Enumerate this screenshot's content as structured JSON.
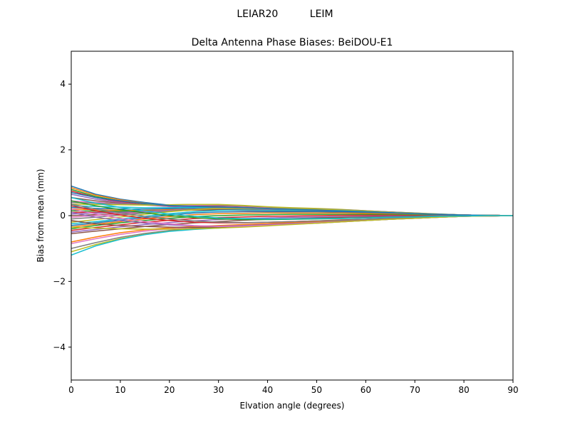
{
  "suptitle": "LEIAR20          LEIM",
  "chart_data": {
    "type": "line",
    "title": "Delta Antenna Phase Biases: BeiDOU-E1",
    "xlabel": "Elvation angle (degrees)",
    "ylabel": "Bias from mean (mm)",
    "xlim": [
      0,
      90
    ],
    "ylim": [
      -5,
      5
    ],
    "xticks": [
      0,
      10,
      20,
      30,
      40,
      50,
      60,
      70,
      80,
      90
    ],
    "yticks": [
      -4,
      -2,
      0,
      2,
      4
    ],
    "xtick_labels": [
      "0",
      "10",
      "20",
      "30",
      "40",
      "50",
      "60",
      "70",
      "80",
      "90"
    ],
    "ytick_labels": [
      "−4",
      "−2",
      "0",
      "2",
      "4"
    ],
    "grid": false,
    "legend": "none",
    "x": [
      0,
      5,
      10,
      15,
      20,
      25,
      30,
      35,
      40,
      45,
      50,
      55,
      60,
      65,
      70,
      75,
      80,
      85,
      90
    ],
    "palette": [
      "#1f77b4",
      "#ff7f0e",
      "#2ca02c",
      "#d62728",
      "#9467bd",
      "#8c564b",
      "#e377c2",
      "#7f7f7f",
      "#bcbd22",
      "#17becf"
    ],
    "series": [
      {
        "values": [
          0.9,
          0.65,
          0.5,
          0.4,
          0.32,
          0.27,
          0.24,
          0.21,
          0.18,
          0.16,
          0.14,
          0.12,
          0.1,
          0.08,
          0.06,
          0.04,
          0.02,
          0.01,
          0.0
        ]
      },
      {
        "values": [
          0.85,
          0.62,
          0.48,
          0.38,
          0.3,
          0.26,
          0.23,
          0.2,
          0.17,
          0.15,
          0.13,
          0.11,
          0.09,
          0.07,
          0.05,
          0.03,
          0.02,
          0.01,
          0.0
        ]
      },
      {
        "values": [
          0.8,
          0.58,
          0.45,
          0.36,
          0.3,
          0.27,
          0.25,
          0.22,
          0.19,
          0.17,
          0.15,
          0.13,
          0.11,
          0.08,
          0.06,
          0.04,
          0.02,
          0.01,
          0.0
        ]
      },
      {
        "values": [
          0.75,
          0.55,
          0.42,
          0.33,
          0.28,
          0.26,
          0.25,
          0.23,
          0.2,
          0.18,
          0.16,
          0.14,
          0.11,
          0.09,
          0.06,
          0.04,
          0.02,
          0.01,
          0.0
        ]
      },
      {
        "values": [
          0.65,
          0.5,
          0.4,
          0.32,
          0.28,
          0.27,
          0.27,
          0.25,
          0.22,
          0.2,
          0.18,
          0.15,
          0.12,
          0.09,
          0.07,
          0.04,
          0.02,
          0.01,
          0.0
        ]
      },
      {
        "values": [
          0.55,
          0.45,
          0.38,
          0.33,
          0.3,
          0.3,
          0.3,
          0.28,
          0.24,
          0.21,
          0.19,
          0.16,
          0.13,
          0.1,
          0.07,
          0.04,
          0.02,
          0.01,
          0.0
        ]
      },
      {
        "values": [
          0.45,
          0.4,
          0.36,
          0.33,
          0.32,
          0.32,
          0.32,
          0.29,
          0.25,
          0.22,
          0.2,
          0.17,
          0.14,
          0.1,
          0.07,
          0.04,
          0.02,
          0.01,
          0.0
        ]
      },
      {
        "values": [
          0.4,
          0.38,
          0.35,
          0.33,
          0.33,
          0.34,
          0.33,
          0.3,
          0.26,
          0.23,
          0.21,
          0.18,
          0.14,
          0.11,
          0.07,
          0.05,
          0.02,
          0.01,
          0.0
        ]
      },
      {
        "values": [
          0.35,
          0.34,
          0.33,
          0.32,
          0.33,
          0.34,
          0.34,
          0.31,
          0.27,
          0.24,
          0.22,
          0.19,
          0.15,
          0.11,
          0.08,
          0.05,
          0.02,
          0.01,
          0.0
        ]
      },
      {
        "values": [
          0.3,
          0.28,
          0.26,
          0.24,
          0.24,
          0.25,
          0.25,
          0.23,
          0.21,
          0.19,
          0.18,
          0.16,
          0.13,
          0.1,
          0.07,
          0.04,
          0.02,
          0.01,
          0.0
        ]
      },
      {
        "values": [
          0.25,
          0.22,
          0.2,
          0.2,
          0.21,
          0.22,
          0.22,
          0.21,
          0.19,
          0.17,
          0.16,
          0.14,
          0.12,
          0.09,
          0.06,
          0.04,
          0.02,
          0.01,
          0.0
        ]
      },
      {
        "values": [
          0.2,
          0.18,
          0.16,
          0.16,
          0.18,
          0.2,
          0.2,
          0.19,
          0.17,
          0.16,
          0.15,
          0.13,
          0.11,
          0.08,
          0.06,
          0.03,
          0.02,
          0.01,
          0.0
        ]
      },
      {
        "values": [
          0.15,
          0.14,
          0.13,
          0.14,
          0.16,
          0.18,
          0.18,
          0.17,
          0.16,
          0.15,
          0.14,
          0.12,
          0.1,
          0.08,
          0.05,
          0.03,
          0.01,
          0.01,
          0.0
        ]
      },
      {
        "values": [
          0.1,
          0.1,
          0.1,
          0.12,
          0.15,
          0.17,
          0.17,
          0.16,
          0.15,
          0.14,
          0.13,
          0.11,
          0.09,
          0.07,
          0.05,
          0.03,
          0.01,
          0.01,
          0.0
        ]
      },
      {
        "values": [
          0.05,
          0.08,
          0.1,
          0.13,
          0.16,
          0.19,
          0.2,
          0.19,
          0.18,
          0.17,
          0.16,
          0.14,
          0.12,
          0.09,
          0.06,
          0.04,
          0.02,
          0.01,
          0.0
        ]
      },
      {
        "values": [
          0.0,
          0.03,
          0.06,
          0.1,
          0.14,
          0.17,
          0.18,
          0.18,
          0.17,
          0.17,
          0.17,
          0.15,
          0.13,
          0.1,
          0.07,
          0.04,
          0.02,
          0.01,
          0.0
        ]
      },
      {
        "values": [
          -0.05,
          0.0,
          0.05,
          0.1,
          0.15,
          0.2,
          0.23,
          0.22,
          0.2,
          0.19,
          0.19,
          0.17,
          0.14,
          0.11,
          0.07,
          0.04,
          0.02,
          0.01,
          0.0
        ]
      },
      {
        "values": [
          -0.1,
          -0.05,
          0.02,
          0.08,
          0.14,
          0.2,
          0.24,
          0.24,
          0.22,
          0.21,
          0.2,
          0.18,
          0.15,
          0.11,
          0.08,
          0.04,
          0.02,
          0.01,
          0.0
        ]
      },
      {
        "values": [
          -0.2,
          -0.12,
          -0.04,
          0.04,
          0.12,
          0.18,
          0.22,
          0.22,
          0.21,
          0.2,
          0.19,
          0.17,
          0.14,
          0.1,
          0.07,
          0.04,
          0.02,
          0.01,
          0.0
        ]
      },
      {
        "values": [
          -0.25,
          -0.18,
          -0.1,
          -0.02,
          0.06,
          0.12,
          0.16,
          0.17,
          0.16,
          0.16,
          0.16,
          0.15,
          0.12,
          0.09,
          0.06,
          0.03,
          0.01,
          0.0,
          0.0
        ]
      },
      {
        "values": [
          -0.3,
          -0.22,
          -0.14,
          -0.06,
          0.02,
          0.08,
          0.11,
          0.12,
          0.12,
          0.12,
          0.12,
          0.11,
          0.09,
          0.07,
          0.05,
          0.03,
          0.01,
          0.0,
          0.0
        ]
      },
      {
        "values": [
          -0.35,
          -0.26,
          -0.18,
          -0.1,
          -0.03,
          0.03,
          0.06,
          0.07,
          0.08,
          0.08,
          0.08,
          0.08,
          0.07,
          0.05,
          0.03,
          0.02,
          0.01,
          0.0,
          0.0
        ]
      },
      {
        "values": [
          -0.4,
          -0.3,
          -0.22,
          -0.15,
          -0.08,
          -0.03,
          0.0,
          0.02,
          0.03,
          0.04,
          0.04,
          0.04,
          0.04,
          0.03,
          0.02,
          0.01,
          0.0,
          0.0,
          0.0
        ]
      },
      {
        "values": [
          -0.45,
          -0.36,
          -0.28,
          -0.2,
          -0.14,
          -0.09,
          -0.06,
          -0.04,
          -0.02,
          -0.01,
          0.0,
          0.01,
          0.01,
          0.01,
          0.0,
          0.0,
          0.0,
          0.0,
          0.0
        ]
      },
      {
        "values": [
          -0.5,
          -0.42,
          -0.34,
          -0.27,
          -0.21,
          -0.16,
          -0.12,
          -0.09,
          -0.07,
          -0.05,
          -0.04,
          -0.03,
          -0.02,
          -0.01,
          -0.01,
          0.0,
          0.0,
          0.0,
          0.0
        ]
      },
      {
        "values": [
          -0.55,
          -0.47,
          -0.4,
          -0.33,
          -0.27,
          -0.22,
          -0.18,
          -0.14,
          -0.11,
          -0.09,
          -0.07,
          -0.05,
          -0.04,
          -0.03,
          -0.02,
          -0.01,
          0.0,
          0.0,
          0.0
        ]
      },
      {
        "values": [
          -0.85,
          -0.7,
          -0.57,
          -0.47,
          -0.4,
          -0.36,
          -0.32,
          -0.28,
          -0.24,
          -0.21,
          -0.18,
          -0.15,
          -0.12,
          -0.09,
          -0.06,
          -0.04,
          -0.02,
          -0.01,
          0.0
        ]
      },
      {
        "values": [
          -1.0,
          -0.82,
          -0.66,
          -0.54,
          -0.45,
          -0.39,
          -0.35,
          -0.31,
          -0.27,
          -0.23,
          -0.2,
          -0.17,
          -0.14,
          -0.1,
          -0.07,
          -0.04,
          -0.02,
          -0.01,
          0.0
        ]
      },
      {
        "values": [
          -1.1,
          -0.88,
          -0.7,
          -0.57,
          -0.47,
          -0.41,
          -0.37,
          -0.32,
          -0.28,
          -0.24,
          -0.21,
          -0.18,
          -0.14,
          -0.11,
          -0.07,
          -0.04,
          -0.02,
          -0.01,
          0.0
        ]
      },
      {
        "values": [
          -1.2,
          -0.92,
          -0.72,
          -0.58,
          -0.48,
          -0.42,
          -0.38,
          -0.33,
          -0.29,
          -0.25,
          -0.21,
          -0.18,
          -0.15,
          -0.11,
          -0.08,
          -0.05,
          -0.02,
          -0.01,
          0.0
        ]
      },
      {
        "values": [
          0.7,
          0.55,
          0.45,
          0.37,
          0.31,
          0.28,
          0.26,
          0.24,
          0.21,
          0.19,
          0.17,
          0.14,
          0.12,
          0.09,
          0.06,
          0.04,
          0.02,
          0.01,
          0.0
        ]
      },
      {
        "values": [
          -0.8,
          -0.65,
          -0.52,
          -0.43,
          -0.37,
          -0.33,
          -0.3,
          -0.27,
          -0.24,
          -0.21,
          -0.18,
          -0.15,
          -0.12,
          -0.09,
          -0.06,
          -0.04,
          -0.02,
          -0.01,
          0.0
        ]
      },
      {
        "values": [
          0.45,
          0.3,
          0.18,
          0.08,
          0.0,
          -0.06,
          -0.1,
          -0.12,
          -0.12,
          -0.11,
          -0.1,
          -0.09,
          -0.07,
          -0.05,
          -0.04,
          -0.02,
          -0.01,
          0.0,
          0.0
        ]
      },
      {
        "values": [
          0.3,
          0.15,
          0.02,
          -0.08,
          -0.15,
          -0.2,
          -0.22,
          -0.22,
          -0.2,
          -0.18,
          -0.16,
          -0.13,
          -0.11,
          -0.08,
          -0.05,
          -0.03,
          -0.01,
          0.0,
          0.0
        ]
      },
      {
        "values": [
          0.1,
          -0.05,
          -0.15,
          -0.23,
          -0.28,
          -0.31,
          -0.32,
          -0.3,
          -0.27,
          -0.24,
          -0.21,
          -0.18,
          -0.14,
          -0.1,
          -0.07,
          -0.04,
          -0.02,
          -0.01,
          0.0
        ]
      },
      {
        "values": [
          -0.15,
          -0.25,
          -0.3,
          -0.33,
          -0.35,
          -0.36,
          -0.35,
          -0.32,
          -0.29,
          -0.26,
          -0.23,
          -0.19,
          -0.15,
          -0.11,
          -0.08,
          -0.05,
          -0.02,
          -0.01,
          0.0
        ]
      },
      {
        "values": [
          0.2,
          0.05,
          -0.08,
          -0.18,
          -0.25,
          -0.3,
          -0.33,
          -0.32,
          -0.29,
          -0.26,
          -0.22,
          -0.19,
          -0.15,
          -0.11,
          -0.08,
          -0.05,
          -0.02,
          -0.01,
          0.0
        ]
      },
      {
        "values": [
          0.35,
          0.2,
          0.08,
          -0.02,
          -0.1,
          -0.16,
          -0.2,
          -0.21,
          -0.2,
          -0.18,
          -0.16,
          -0.14,
          -0.11,
          -0.08,
          -0.06,
          -0.03,
          -0.01,
          0.0,
          0.0
        ]
      },
      {
        "values": [
          -0.35,
          -0.38,
          -0.4,
          -0.41,
          -0.41,
          -0.4,
          -0.38,
          -0.35,
          -0.31,
          -0.27,
          -0.23,
          -0.19,
          -0.15,
          -0.11,
          -0.08,
          -0.05,
          -0.02,
          -0.01,
          0.0
        ]
      },
      {
        "values": [
          0.55,
          0.38,
          0.25,
          0.14,
          0.05,
          -0.02,
          -0.07,
          -0.09,
          -0.1,
          -0.1,
          -0.09,
          -0.08,
          -0.07,
          -0.05,
          -0.04,
          -0.02,
          -0.01,
          0.0,
          0.0
        ]
      }
    ]
  }
}
